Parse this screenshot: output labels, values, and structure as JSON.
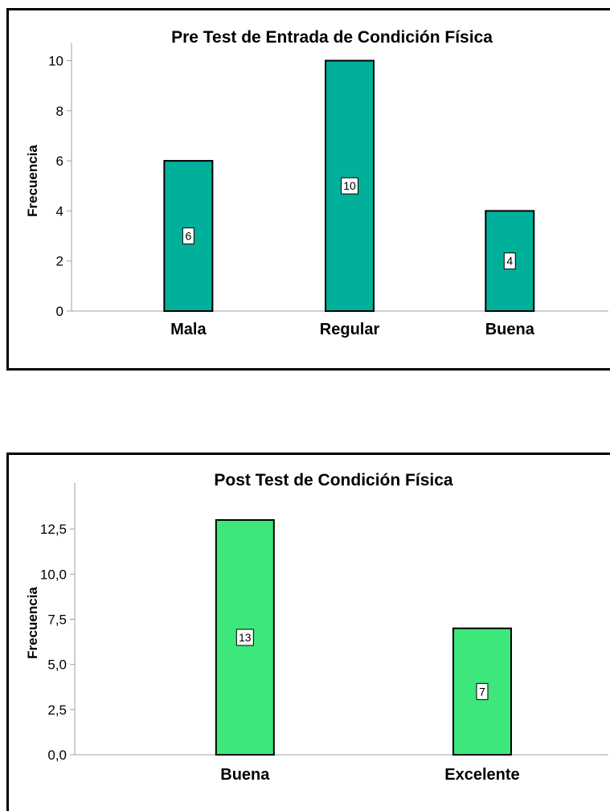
{
  "chart_data": [
    {
      "type": "bar",
      "title": "Pre Test de Entrada de Condición Física",
      "ylabel": "Frecuencia",
      "xlabel": "",
      "categories": [
        "Mala",
        "Regular",
        "Buena"
      ],
      "values": [
        6,
        10,
        4
      ],
      "data_labels": [
        "6",
        "10",
        "4"
      ],
      "yticks": [
        0,
        2,
        4,
        6,
        8,
        10
      ],
      "ytick_labels": [
        "0",
        "2",
        "4",
        "6",
        "8",
        "10"
      ],
      "ylim": [
        0,
        10.4
      ],
      "bar_color": "#00b09b",
      "grid": false
    },
    {
      "type": "bar",
      "title": "Post Test de Condición Física",
      "ylabel": "Frecuencia",
      "xlabel": "",
      "categories": [
        "Buena",
        "Excelente"
      ],
      "values": [
        13,
        7
      ],
      "data_labels": [
        "13",
        "7"
      ],
      "yticks": [
        0,
        2.5,
        5,
        7.5,
        10,
        12.5
      ],
      "ytick_labels": [
        "0,0",
        "2,5",
        "5,0",
        "7,5",
        "10,0",
        "12,5"
      ],
      "ylim": [
        0,
        14.6
      ],
      "bar_color": "#3de77c",
      "grid": false
    }
  ]
}
